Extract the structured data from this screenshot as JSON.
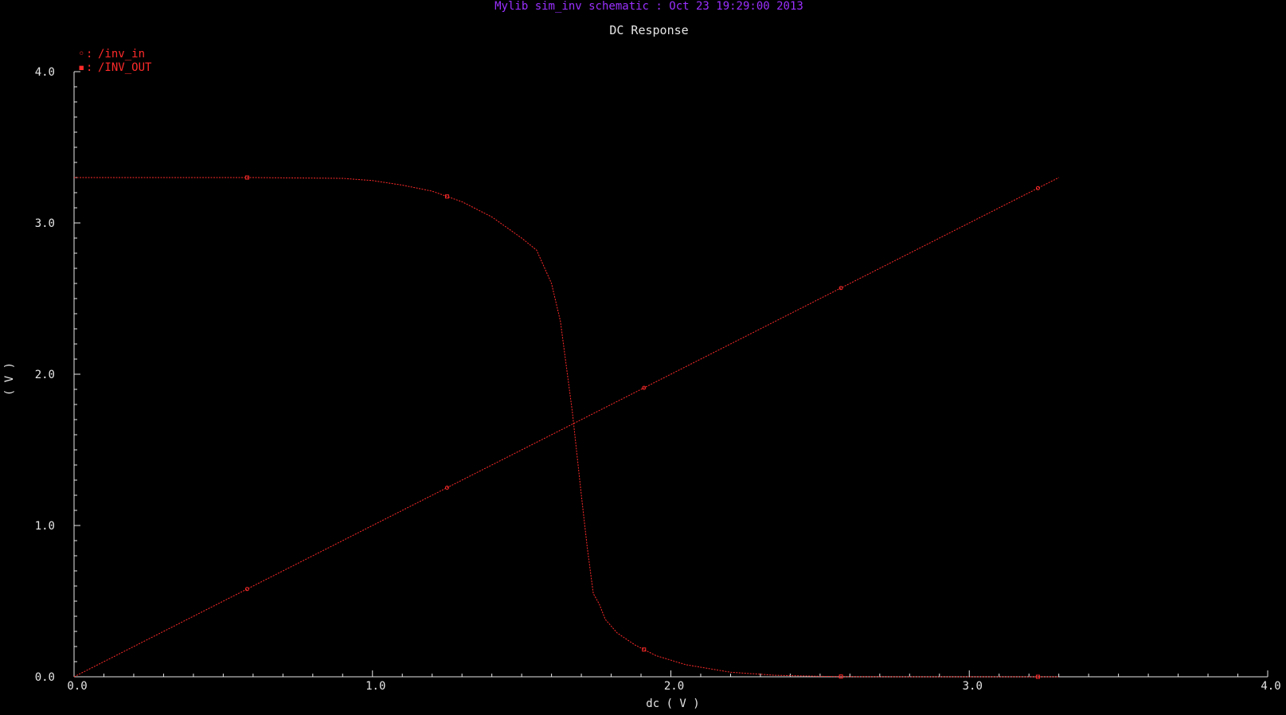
{
  "header": {
    "window_title": "Mylib sim_inv schematic : Oct 23 19:29:00 2013"
  },
  "colors": {
    "background": "#000000",
    "header_text": "#9b30ff",
    "foreground": "#e6e6e6",
    "trace": "#ff2a2a"
  },
  "chart_data": {
    "type": "line",
    "title": "DC Response",
    "xlabel": "dc ( V )",
    "ylabel": "( V )",
    "xlim": [
      0,
      4.0
    ],
    "ylim": [
      0,
      4.0
    ],
    "x_ticks": [
      {
        "value": 0.0,
        "label": "0.0"
      },
      {
        "value": 1.0,
        "label": "1.0"
      },
      {
        "value": 2.0,
        "label": "2.0"
      },
      {
        "value": 3.0,
        "label": "3.0"
      },
      {
        "value": 4.0,
        "label": "4.0"
      }
    ],
    "y_ticks": [
      {
        "value": 0.0,
        "label": "0.0"
      },
      {
        "value": 1.0,
        "label": "1.0"
      },
      {
        "value": 2.0,
        "label": "2.0"
      },
      {
        "value": 3.0,
        "label": "3.0"
      },
      {
        "value": 4.0,
        "label": "4.0"
      }
    ],
    "legend": {
      "placement": "top-left",
      "entries": [
        "/inv_in",
        "/INV_OUT"
      ]
    },
    "series": [
      {
        "name": "/inv_in",
        "marker": "◦",
        "x": [
          0.0,
          3.3
        ],
        "y": [
          0.0,
          3.3
        ]
      },
      {
        "name": "/INV_OUT",
        "marker": "▪",
        "x": [
          0.0,
          0.3,
          0.6,
          0.9,
          1.0,
          1.1,
          1.2,
          1.3,
          1.4,
          1.5,
          1.55,
          1.6,
          1.63,
          1.65,
          1.67,
          1.7,
          1.72,
          1.74,
          1.76,
          1.78,
          1.82,
          1.88,
          1.95,
          2.05,
          2.2,
          2.35,
          2.5,
          2.6,
          2.8,
          3.0,
          3.3
        ],
        "y": [
          3.3,
          3.3,
          3.3,
          3.295,
          3.28,
          3.25,
          3.21,
          3.14,
          3.04,
          2.9,
          2.82,
          2.6,
          2.35,
          2.05,
          1.75,
          1.2,
          0.85,
          0.55,
          0.48,
          0.38,
          0.29,
          0.21,
          0.14,
          0.08,
          0.03,
          0.01,
          0.003,
          0.001,
          0.0,
          0.0,
          0.0
        ]
      }
    ]
  }
}
